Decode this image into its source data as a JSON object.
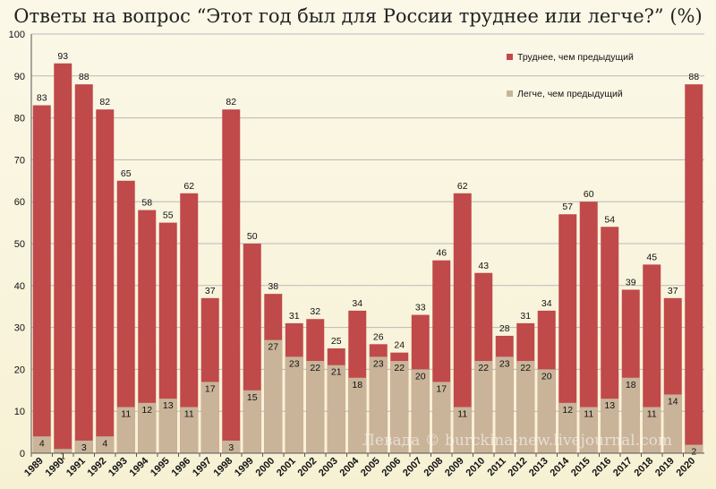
{
  "title": "Ответы на вопрос “Этот год был для России труднее или легче?” (%)",
  "watermark": "Левада © burckina-new.livejournal.com",
  "colors": {
    "harder": "#c0494a",
    "easier": "#c9b49a",
    "grid": "#b9b9b9",
    "axis": "#555555"
  },
  "chart_data": {
    "type": "bar",
    "title": "Ответы на вопрос “Этот год был для России труднее или легче?” (%)",
    "xlabel": "",
    "ylabel": "",
    "ylim": [
      0,
      100
    ],
    "yticks": [
      0,
      10,
      20,
      30,
      40,
      50,
      60,
      70,
      80,
      90,
      100
    ],
    "grid": true,
    "legend_position": "top-right",
    "categories": [
      "1989",
      "1990",
      "1991",
      "1992",
      "1993",
      "1994",
      "1995",
      "1996",
      "1997",
      "1998",
      "1999",
      "2000",
      "2001",
      "2002",
      "2003",
      "2004",
      "2005",
      "2006",
      "2007",
      "2008",
      "2009",
      "2010",
      "2011",
      "2012",
      "2013",
      "2014",
      "2015",
      "2016",
      "2017",
      "2018",
      "2019",
      "2020"
    ],
    "series": [
      {
        "name": "Труднее, чем предыдущий",
        "color": "#c0494a",
        "values": [
          83,
          93,
          88,
          82,
          65,
          58,
          55,
          62,
          37,
          82,
          50,
          38,
          31,
          32,
          25,
          34,
          26,
          24,
          33,
          46,
          62,
          43,
          28,
          31,
          34,
          57,
          60,
          54,
          39,
          45,
          37,
          88
        ]
      },
      {
        "name": "Легче, чем предыдущий",
        "color": "#c9b49a",
        "values": [
          4,
          1,
          3,
          4,
          11,
          12,
          13,
          11,
          17,
          3,
          15,
          27,
          23,
          22,
          21,
          18,
          23,
          22,
          20,
          17,
          11,
          22,
          23,
          22,
          20,
          12,
          11,
          13,
          18,
          11,
          14,
          2
        ]
      }
    ]
  }
}
